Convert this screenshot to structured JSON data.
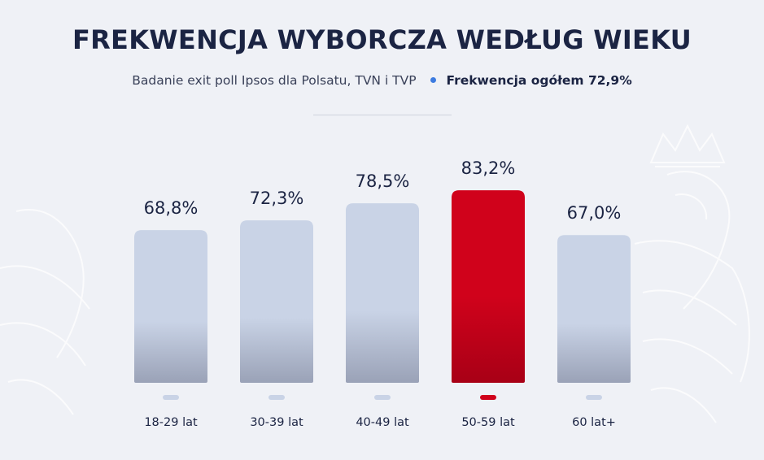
{
  "title": "FREKWENCJA WYBORCZA WEDŁUG WIEKU",
  "subtitle": "Badanie exit poll Ipsos dla Polsatu, TVN i TVP",
  "turnout_total_label": "Frekwencja ogółem 72,9%",
  "colors": {
    "title": "#1b2443",
    "bar": "#c9d3e6",
    "bar_bottom": "#9aa2b7",
    "highlight": "#d0021b",
    "highlight_bottom": "#a80016",
    "marker": "#c9d3e6",
    "dot_accent": "#3c7be0"
  },
  "chart_data": {
    "type": "bar",
    "categories": [
      "18-29 lat",
      "30-39 lat",
      "40-49 lat",
      "50-59 lat",
      "60 lat+"
    ],
    "values": [
      68.8,
      72.3,
      78.5,
      83.2,
      67.0
    ],
    "value_labels": [
      "68,8%",
      "72,3%",
      "78,5%",
      "83,2%",
      "67,0%"
    ],
    "highlight_index": 3,
    "unit": "%",
    "ylim": [
      0,
      100
    ],
    "xlabel": "",
    "ylabel": "",
    "grid": false,
    "legend": "none"
  }
}
